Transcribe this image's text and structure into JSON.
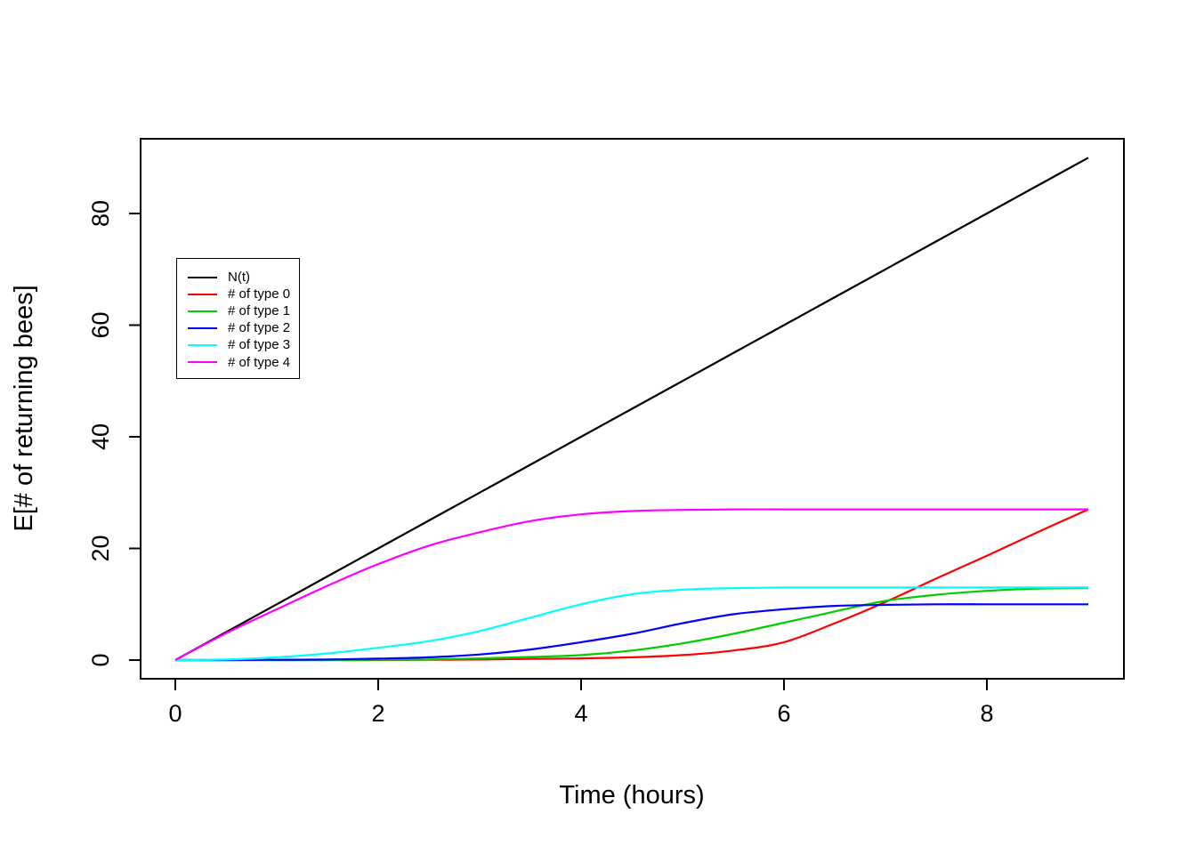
{
  "figure": {
    "background": "#ffffff",
    "text_color": "#000000"
  },
  "chart_data": {
    "type": "line",
    "title": "",
    "xlabel": "Time (hours)",
    "ylabel": "E[# of returning bees]",
    "xlim": [
      0,
      9
    ],
    "ylim": [
      0,
      90
    ],
    "xticks": [
      0,
      2,
      4,
      6,
      8
    ],
    "yticks": [
      0,
      20,
      40,
      60,
      80
    ],
    "grid": false,
    "legend_position": "upper-left-inset",
    "x": [
      0,
      0.5,
      1,
      1.5,
      2,
      2.5,
      3,
      3.5,
      4,
      4.5,
      5,
      5.5,
      6,
      6.5,
      7,
      7.5,
      8,
      8.5,
      9
    ],
    "series": [
      {
        "name": "N(t)",
        "color": "#000000",
        "values": [
          0,
          5,
          10,
          15,
          20,
          25,
          30,
          35,
          40,
          45,
          50,
          55,
          60,
          65,
          70,
          75,
          80,
          85,
          90
        ]
      },
      {
        "name": "# of type 0",
        "color": "#FF0000",
        "values": [
          0,
          0,
          0,
          0,
          0,
          0.05,
          0.1,
          0.2,
          0.3,
          0.5,
          0.9,
          1.7,
          3.2,
          6.6,
          10.4,
          14.6,
          18.7,
          22.9,
          27
        ]
      },
      {
        "name": "# of type 1",
        "color": "#00CD00",
        "values": [
          0,
          0,
          0,
          0,
          0.05,
          0.1,
          0.3,
          0.55,
          0.9,
          1.7,
          3.0,
          4.7,
          6.7,
          8.7,
          10.6,
          11.7,
          12.4,
          12.8,
          12.9
        ]
      },
      {
        "name": "# of type 2",
        "color": "#0000FF",
        "values": [
          0,
          0,
          0.05,
          0.1,
          0.25,
          0.5,
          1.0,
          1.9,
          3.2,
          4.7,
          6.6,
          8.2,
          9.1,
          9.7,
          9.9,
          10,
          10,
          10,
          10
        ]
      },
      {
        "name": "# of type 3",
        "color": "#00FFFF",
        "values": [
          0,
          0.1,
          0.5,
          1.2,
          2.2,
          3.4,
          5.2,
          7.6,
          10.0,
          11.8,
          12.6,
          12.9,
          13,
          13,
          13,
          13,
          13,
          13,
          13
        ]
      },
      {
        "name": "# of type 4",
        "color": "#FF00FF",
        "values": [
          0,
          4.8,
          9.1,
          13.3,
          17.2,
          20.5,
          22.9,
          24.9,
          26.1,
          26.7,
          26.9,
          27,
          27,
          27,
          27,
          27,
          27,
          27,
          27
        ]
      }
    ]
  }
}
